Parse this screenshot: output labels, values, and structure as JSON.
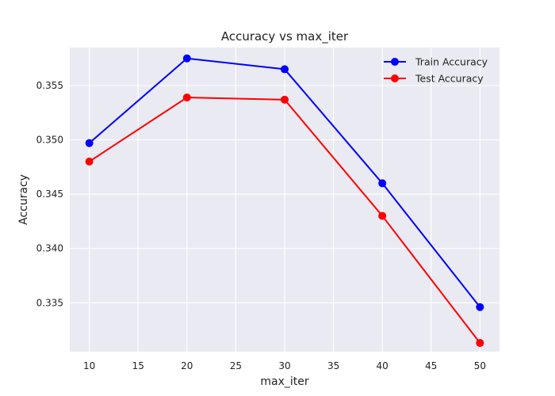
{
  "chart_data": {
    "type": "line",
    "title": "Accuracy vs max_iter",
    "xlabel": "max_iter",
    "ylabel": "Accuracy",
    "x": [
      10,
      20,
      30,
      40,
      50
    ],
    "xlim": [
      8.0,
      52.0
    ],
    "ylim": [
      0.3305,
      0.3585
    ],
    "xticks": [
      10,
      15,
      20,
      25,
      30,
      35,
      40,
      45,
      50
    ],
    "yticks": [
      0.335,
      0.34,
      0.345,
      0.35,
      0.355
    ],
    "xtick_labels": [
      "10",
      "15",
      "20",
      "25",
      "30",
      "35",
      "40",
      "45",
      "50"
    ],
    "ytick_labels": [
      "0.335",
      "0.340",
      "0.345",
      "0.350",
      "0.355"
    ],
    "grid": true,
    "legend_position": "top-right",
    "colors": {
      "plot_background": "#eaeaf2",
      "grid": "#ffffff"
    },
    "series": [
      {
        "name": "Train Accuracy",
        "color": "#0000ff",
        "marker": "circle",
        "values": [
          0.3497,
          0.3575,
          0.3565,
          0.346,
          0.3346
        ]
      },
      {
        "name": "Test Accuracy",
        "color": "#ff0000",
        "marker": "circle",
        "values": [
          0.348,
          0.3539,
          0.3537,
          0.343,
          0.3313
        ]
      }
    ]
  }
}
